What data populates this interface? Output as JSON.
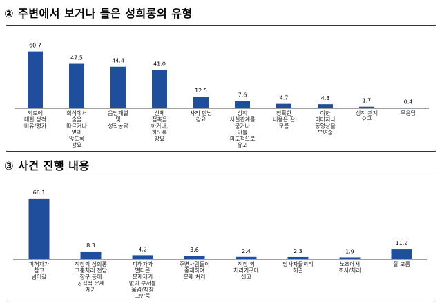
{
  "titles": {
    "section2": "② 주변에서 보거나 들은 성희롱의 유형",
    "section3": "③ 사건 진행 내용"
  },
  "colors": {
    "bar": "#1f4e9c",
    "axis": "#000000"
  },
  "chart_data": [
    {
      "type": "bar",
      "title": "② 주변에서 보거나 들은 성희롱의 유형",
      "categories": [
        [
          "외모에",
          "대한 성적",
          "비유/평가"
        ],
        [
          "회식에서",
          "술을",
          "따르거나",
          "옆에",
          "앉도록",
          "강요"
        ],
        [
          "음담패설",
          "및",
          "성적농담"
        ],
        [
          "신체",
          "접촉을",
          "하거나,",
          "하도록",
          "강요"
        ],
        [
          "사적 만남",
          "강요"
        ],
        [
          "성적",
          "사실관계를",
          "묻거나",
          "이를",
          "의도적으로",
          "유포"
        ],
        [
          "정확한",
          "내용은 잘",
          "모름"
        ],
        [
          "야한",
          "이미지나",
          "동영상을",
          "보여줌"
        ],
        [
          "성적 관계",
          "요구"
        ],
        [
          "무응답"
        ]
      ],
      "values": [
        60.7,
        47.5,
        44.4,
        41.0,
        12.5,
        7.6,
        4.7,
        4.3,
        1.7,
        0.4
      ],
      "labels": [
        "60.7",
        "47.5",
        "44.4",
        "41.0",
        "12.5",
        "7.6",
        "4.7",
        "4.3",
        "1.7",
        "0.4"
      ],
      "ylim": [
        0,
        70
      ]
    },
    {
      "type": "bar",
      "title": "③ 사건 진행 내용",
      "categories": [
        [
          "피해자가",
          "참고",
          "넘어감"
        ],
        [
          "직장의 성희롱",
          "고충처리 전담",
          "창구 등에",
          "공식적 문제",
          "제기"
        ],
        [
          "피해자가",
          "별다른",
          "문제제기",
          "없이 부서를",
          "옮김/직장",
          "그만둠"
        ],
        [
          "주변사람들이",
          "중재하여",
          "문제 처리"
        ],
        [
          "직장 외",
          "처리기구에",
          "신고"
        ],
        [
          "당사자들끼리",
          "해결"
        ],
        [
          "노조에서",
          "조사/처리"
        ],
        [
          "잘 모름"
        ]
      ],
      "values": [
        66.1,
        8.3,
        4.2,
        3.6,
        2.4,
        2.3,
        1.9,
        11.2
      ],
      "labels": [
        "66.1",
        "8.3",
        "4.2",
        "3.6",
        "2.4",
        "2.3",
        "1.9",
        "11.2"
      ],
      "ylim": [
        0,
        75
      ]
    }
  ]
}
